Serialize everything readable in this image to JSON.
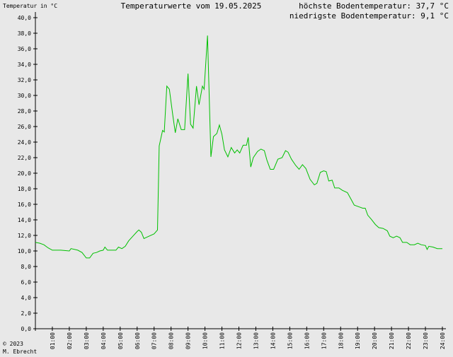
{
  "chart_data": {
    "type": "line",
    "title": "Temperaturwerte vom 19.05.2025",
    "ylabel": "Temperatur in °C",
    "annotations": [
      "höchste Bodentemperatur: 37,7 °C",
      "niedrigste Bodentemperatur: 9,1 °C"
    ],
    "footer": [
      "© 2023",
      "M. Ebrecht"
    ],
    "color": "#00c000",
    "xlim": [
      0,
      24
    ],
    "ylim": [
      0,
      40
    ],
    "xticks": [
      {
        "value": 1,
        "label": "01:00"
      },
      {
        "value": 2,
        "label": "02:00"
      },
      {
        "value": 3,
        "label": "03:00"
      },
      {
        "value": 4,
        "label": "04:00"
      },
      {
        "value": 5,
        "label": "05:00"
      },
      {
        "value": 6,
        "label": "06:00"
      },
      {
        "value": 7,
        "label": "07:00"
      },
      {
        "value": 8,
        "label": "08:00"
      },
      {
        "value": 9,
        "label": "09:00"
      },
      {
        "value": 10,
        "label": "10:00"
      },
      {
        "value": 11,
        "label": "11:00"
      },
      {
        "value": 12,
        "label": "12:00"
      },
      {
        "value": 13,
        "label": "13:00"
      },
      {
        "value": 14,
        "label": "14:00"
      },
      {
        "value": 15,
        "label": "15:00"
      },
      {
        "value": 16,
        "label": "16:00"
      },
      {
        "value": 17,
        "label": "17:00"
      },
      {
        "value": 18,
        "label": "18:00"
      },
      {
        "value": 19,
        "label": "19:00"
      },
      {
        "value": 20,
        "label": "20:00"
      },
      {
        "value": 21,
        "label": "21:00"
      },
      {
        "value": 22,
        "label": "22:00"
      },
      {
        "value": 23,
        "label": "23:00"
      },
      {
        "value": 24,
        "label": "24:00"
      }
    ],
    "yticks": [
      {
        "value": 0,
        "label": "0,0"
      },
      {
        "value": 2,
        "label": "2,0"
      },
      {
        "value": 4,
        "label": "4,0"
      },
      {
        "value": 6,
        "label": "6,0"
      },
      {
        "value": 8,
        "label": "8,0"
      },
      {
        "value": 10,
        "label": "10,0"
      },
      {
        "value": 12,
        "label": "12,0"
      },
      {
        "value": 14,
        "label": "14,0"
      },
      {
        "value": 16,
        "label": "16,0"
      },
      {
        "value": 18,
        "label": "18,0"
      },
      {
        "value": 20,
        "label": "20,0"
      },
      {
        "value": 22,
        "label": "22,0"
      },
      {
        "value": 24,
        "label": "24,0"
      },
      {
        "value": 26,
        "label": "26,0"
      },
      {
        "value": 28,
        "label": "28,0"
      },
      {
        "value": 30,
        "label": "30,0"
      },
      {
        "value": 32,
        "label": "32,0"
      },
      {
        "value": 34,
        "label": "34,0"
      },
      {
        "value": 36,
        "label": "36,0"
      },
      {
        "value": 38,
        "label": "38,0"
      },
      {
        "value": 40,
        "label": "40,0"
      }
    ],
    "x": [
      0.0,
      0.25,
      0.5,
      0.75,
      1.0,
      1.5,
      2.0,
      2.1,
      2.5,
      2.75,
      3.0,
      3.2,
      3.4,
      3.6,
      3.8,
      4.0,
      4.1,
      4.25,
      4.75,
      4.9,
      5.1,
      5.3,
      5.5,
      5.75,
      6.0,
      6.1,
      6.25,
      6.4,
      6.6,
      7.0,
      7.2,
      7.25,
      7.3,
      7.5,
      7.6,
      7.75,
      7.9,
      8.1,
      8.25,
      8.4,
      8.6,
      8.8,
      9.0,
      9.15,
      9.3,
      9.5,
      9.65,
      9.85,
      9.95,
      10.15,
      10.35,
      10.5,
      10.7,
      10.85,
      11.0,
      11.15,
      11.35,
      11.55,
      11.75,
      11.9,
      12.05,
      12.25,
      12.45,
      12.55,
      12.7,
      12.85,
      13.1,
      13.3,
      13.5,
      13.65,
      13.85,
      14.05,
      14.3,
      14.55,
      14.75,
      14.9,
      15.1,
      15.35,
      15.55,
      15.75,
      15.95,
      16.2,
      16.45,
      16.6,
      16.8,
      17.0,
      17.15,
      17.3,
      17.5,
      17.65,
      17.9,
      18.1,
      18.4,
      18.6,
      18.8,
      19.05,
      19.3,
      19.45,
      19.6,
      19.8,
      20.05,
      20.25,
      20.5,
      20.75,
      20.9,
      21.1,
      21.3,
      21.5,
      21.65,
      21.9,
      22.1,
      22.35,
      22.55,
      22.75,
      23.0,
      23.1,
      23.2,
      23.45,
      23.7,
      24.0
    ],
    "values": [
      11.1,
      11.0,
      10.8,
      10.4,
      10.1,
      10.1,
      10.0,
      10.3,
      10.1,
      9.8,
      9.1,
      9.1,
      9.7,
      9.8,
      10.0,
      10.1,
      10.5,
      10.1,
      10.1,
      10.5,
      10.3,
      10.6,
      11.3,
      11.9,
      12.5,
      12.7,
      12.4,
      11.6,
      11.8,
      12.2,
      12.7,
      18.0,
      23.5,
      25.5,
      25.3,
      31.2,
      30.8,
      27.5,
      25.2,
      27.0,
      25.6,
      25.6,
      32.8,
      26.3,
      25.8,
      31.2,
      28.8,
      31.2,
      30.8,
      37.7,
      22.1,
      24.7,
      25.1,
      26.2,
      25.0,
      23.0,
      22.1,
      23.3,
      22.6,
      23.0,
      22.6,
      23.6,
      23.6,
      24.6,
      20.8,
      22.0,
      22.8,
      23.1,
      22.9,
      21.7,
      20.5,
      20.5,
      21.8,
      22.0,
      22.9,
      22.7,
      21.8,
      21.0,
      20.5,
      21.1,
      20.6,
      19.2,
      18.5,
      18.7,
      20.1,
      20.3,
      20.2,
      19.0,
      19.1,
      18.1,
      18.1,
      17.8,
      17.5,
      16.7,
      15.9,
      15.7,
      15.5,
      15.5,
      14.6,
      14.1,
      13.4,
      13.0,
      12.9,
      12.6,
      11.9,
      11.7,
      11.9,
      11.7,
      11.1,
      11.1,
      10.8,
      10.8,
      11.0,
      10.8,
      10.7,
      10.2,
      10.6,
      10.5,
      10.3,
      10.3
    ]
  }
}
